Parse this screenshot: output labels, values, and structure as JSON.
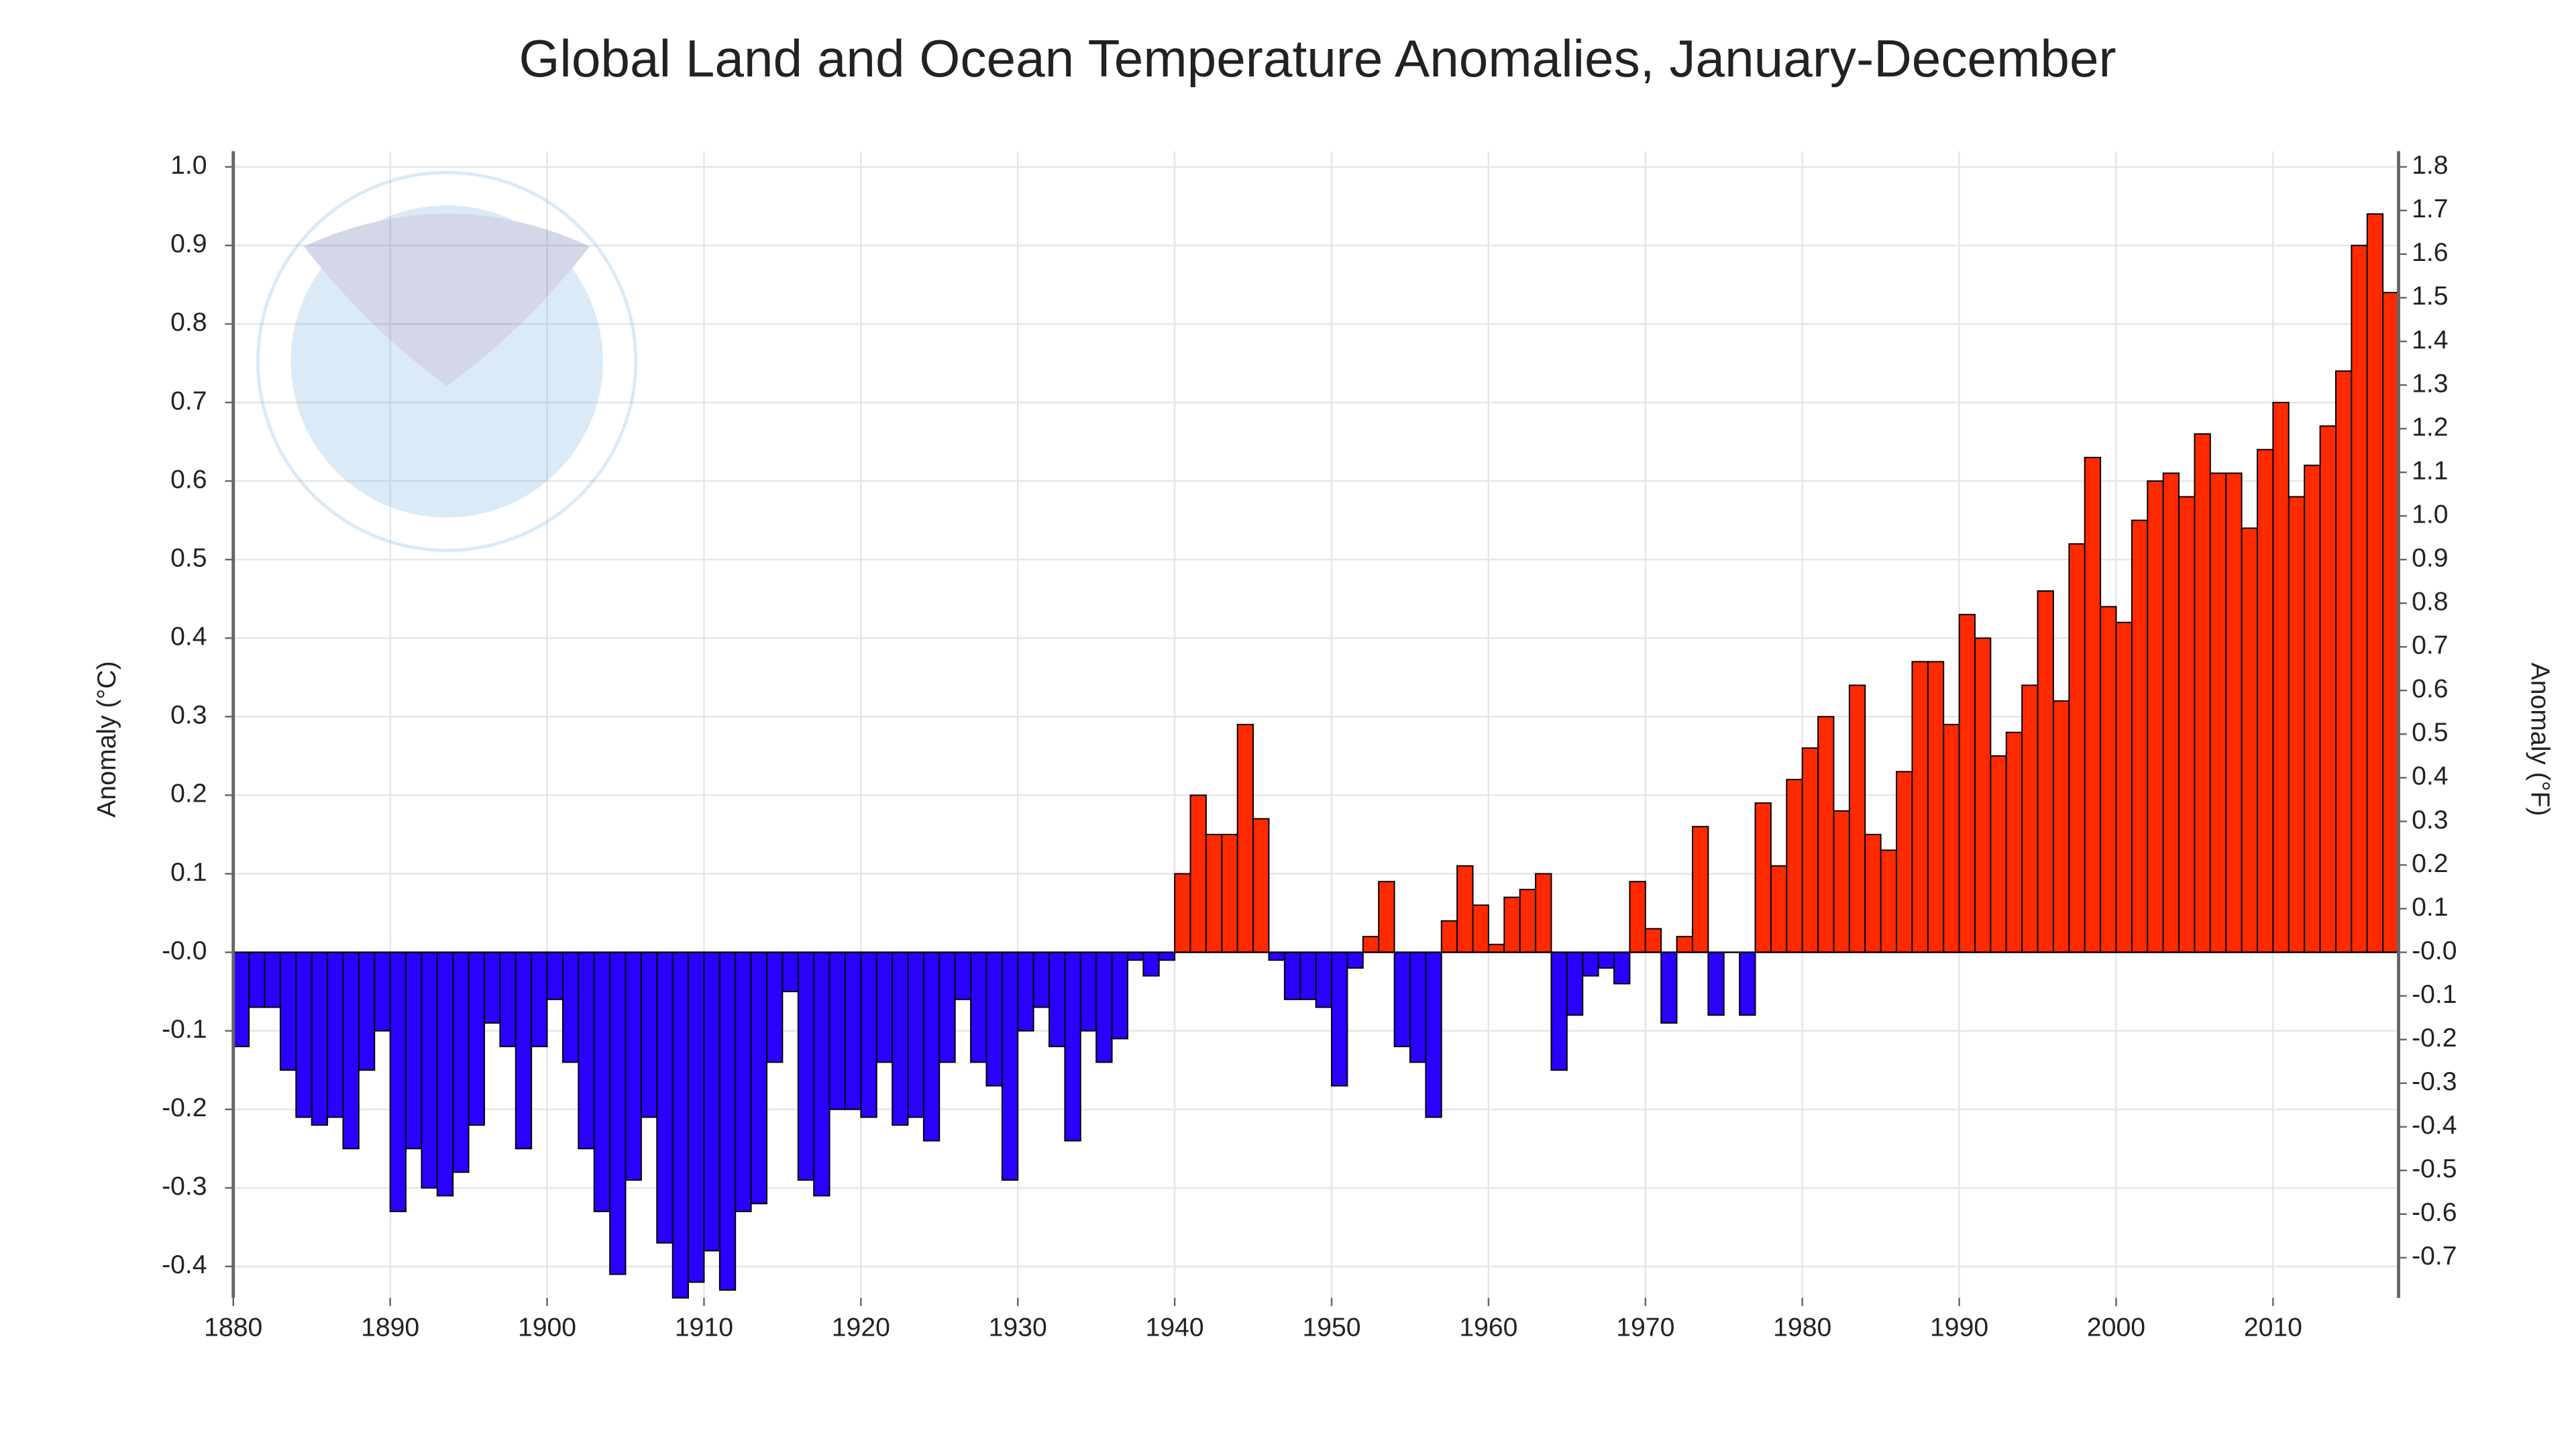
{
  "chart_data": {
    "type": "bar",
    "title": "Global Land and Ocean Temperature Anomalies, January-December",
    "y_label": "Anomaly (°C)",
    "y2_label": "Anomaly (°F)",
    "x": [
      1880,
      1881,
      1882,
      1883,
      1884,
      1885,
      1886,
      1887,
      1888,
      1889,
      1890,
      1891,
      1892,
      1893,
      1894,
      1895,
      1896,
      1897,
      1898,
      1899,
      1900,
      1901,
      1902,
      1903,
      1904,
      1905,
      1906,
      1907,
      1908,
      1909,
      1910,
      1911,
      1912,
      1913,
      1914,
      1915,
      1916,
      1917,
      1918,
      1919,
      1920,
      1921,
      1922,
      1923,
      1924,
      1925,
      1926,
      1927,
      1928,
      1929,
      1930,
      1931,
      1932,
      1933,
      1934,
      1935,
      1936,
      1937,
      1938,
      1939,
      1940,
      1941,
      1942,
      1943,
      1944,
      1945,
      1946,
      1947,
      1948,
      1949,
      1950,
      1951,
      1952,
      1953,
      1954,
      1955,
      1956,
      1957,
      1958,
      1959,
      1960,
      1961,
      1962,
      1963,
      1964,
      1965,
      1966,
      1967,
      1968,
      1969,
      1970,
      1971,
      1972,
      1973,
      1974,
      1975,
      1976,
      1977,
      1978,
      1979,
      1980,
      1981,
      1982,
      1983,
      1984,
      1985,
      1986,
      1987,
      1988,
      1989,
      1990,
      1991,
      1992,
      1993,
      1994,
      1995,
      1996,
      1997,
      1998,
      1999,
      2000,
      2001,
      2002,
      2003,
      2004,
      2005,
      2006,
      2007,
      2008,
      2009,
      2010,
      2011,
      2012,
      2013,
      2014,
      2015,
      2016,
      2017
    ],
    "values": [
      -0.12,
      -0.07,
      -0.07,
      -0.15,
      -0.21,
      -0.22,
      -0.21,
      -0.25,
      -0.15,
      -0.1,
      -0.33,
      -0.25,
      -0.3,
      -0.31,
      -0.28,
      -0.22,
      -0.09,
      -0.12,
      -0.25,
      -0.12,
      -0.06,
      -0.14,
      -0.25,
      -0.33,
      -0.41,
      -0.29,
      -0.21,
      -0.37,
      -0.44,
      -0.42,
      -0.38,
      -0.43,
      -0.33,
      -0.32,
      -0.14,
      -0.05,
      -0.29,
      -0.31,
      -0.2,
      -0.2,
      -0.21,
      -0.14,
      -0.22,
      -0.21,
      -0.24,
      -0.14,
      -0.06,
      -0.14,
      -0.17,
      -0.29,
      -0.1,
      -0.07,
      -0.12,
      -0.24,
      -0.1,
      -0.14,
      -0.11,
      -0.01,
      -0.03,
      -0.01,
      0.1,
      0.2,
      0.15,
      0.15,
      0.29,
      0.17,
      -0.01,
      -0.06,
      -0.06,
      -0.07,
      -0.17,
      -0.02,
      0.02,
      0.09,
      -0.12,
      -0.14,
      -0.21,
      0.04,
      0.11,
      0.06,
      0.01,
      0.07,
      0.08,
      0.1,
      -0.15,
      -0.08,
      -0.03,
      -0.02,
      -0.04,
      0.09,
      0.03,
      -0.09,
      0.02,
      0.16,
      -0.08,
      0.0,
      -0.08,
      0.19,
      0.11,
      0.22,
      0.26,
      0.3,
      0.18,
      0.34,
      0.15,
      0.13,
      0.23,
      0.37,
      0.37,
      0.29,
      0.43,
      0.4,
      0.25,
      0.28,
      0.34,
      0.46,
      0.32,
      0.52,
      0.63,
      0.44,
      0.42,
      0.55,
      0.6,
      0.61,
      0.58,
      0.66,
      0.61,
      0.61,
      0.54,
      0.64,
      0.7,
      0.58,
      0.62,
      0.67,
      0.74,
      0.9,
      0.94,
      0.84
    ],
    "positive_color": "#ff2a00",
    "negative_color": "#2a00ff",
    "xlim": [
      1880,
      2018
    ],
    "xticks": [
      1880,
      1890,
      1900,
      1910,
      1920,
      1930,
      1940,
      1950,
      1960,
      1970,
      1980,
      1990,
      2000,
      2010
    ],
    "ylim": [
      -0.44,
      1.02
    ],
    "yticks": [
      {
        "value": 1,
        "label": "1.0"
      },
      0.9,
      0.8,
      0.7,
      0.6,
      0.5,
      0.4,
      0.3,
      0.2,
      0.1,
      {
        "value": 0,
        "label": "-0.0"
      },
      -0.1,
      -0.2,
      -0.3,
      -0.4
    ],
    "y2lim": [
      -0.792,
      1.836
    ],
    "y2ticks": [
      1.8,
      1.7,
      1.6,
      1.5,
      1.4,
      1.3,
      1.2,
      1.1,
      {
        "value": 1,
        "label": "1.0"
      },
      0.9,
      0.8,
      0.7,
      0.6,
      0.5,
      0.4,
      0.3,
      0.2,
      0.1,
      {
        "value": 0,
        "label": "-0.0"
      },
      -0.1,
      -0.2,
      -0.3,
      -0.4,
      -0.5,
      -0.6,
      -0.7
    ],
    "grid": true
  }
}
